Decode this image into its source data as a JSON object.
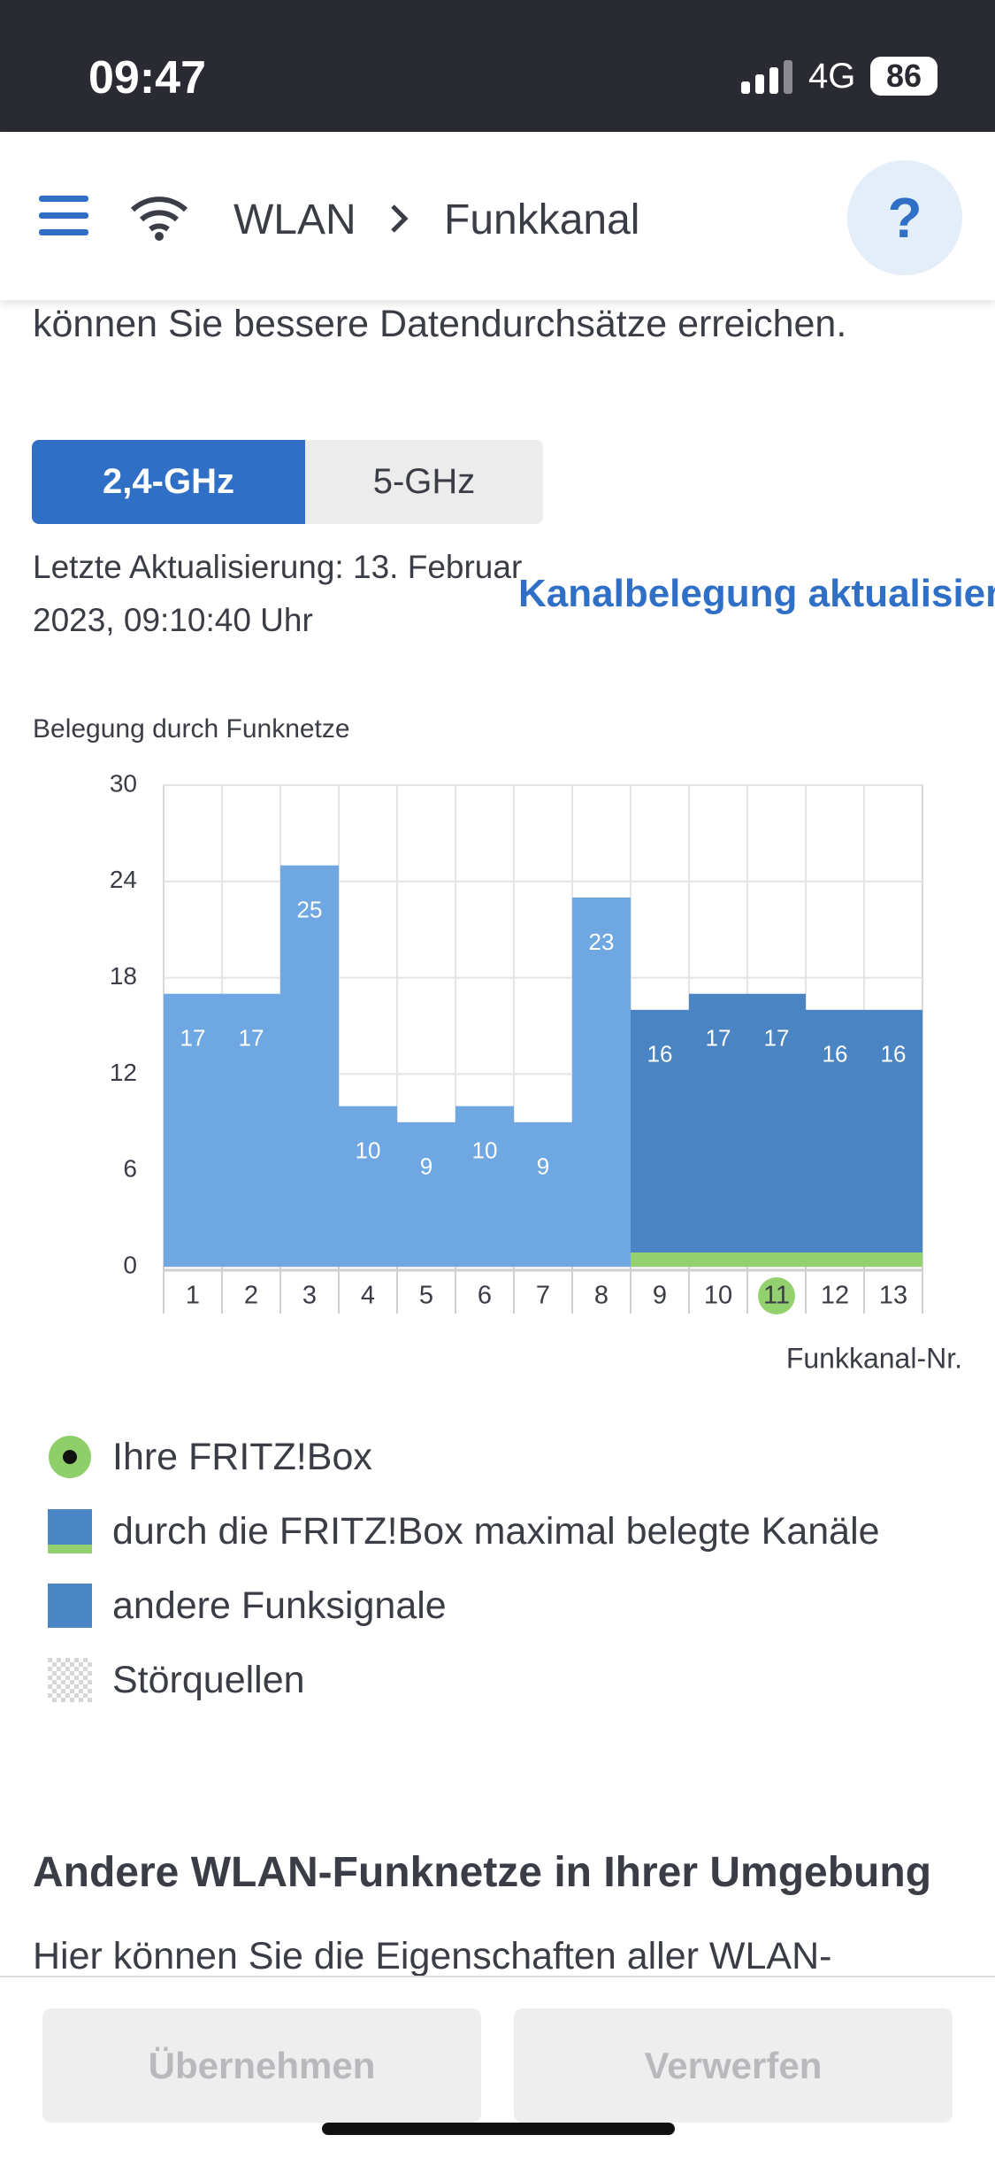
{
  "status_bar": {
    "time": "09:47",
    "network": "4G",
    "battery": "86"
  },
  "nav": {
    "section": "WLAN",
    "page": "Funkkanal",
    "help": "?"
  },
  "intro": "können Sie bessere Datendurchsätze erreichen.",
  "tabs": [
    "2,4-GHz",
    "5-GHz"
  ],
  "last_update": [
    "Letzte Aktualisierung: 13. Februar",
    "2023, 09:10:40 Uhr"
  ],
  "refresh_link": "Kanalbelegung aktualisieren",
  "chart_data": {
    "type": "bar",
    "title": "Belegung durch Funknetze",
    "x_label": "Funkkanal-Nr.",
    "categories": [
      "1",
      "2",
      "3",
      "4",
      "5",
      "6",
      "7",
      "8",
      "9",
      "10",
      "11",
      "12",
      "13"
    ],
    "values": [
      17,
      17,
      25,
      10,
      9,
      10,
      9,
      23,
      16,
      17,
      17,
      16,
      16
    ],
    "color": "#6ea7e1",
    "fritzbox_color": "#4b84c2",
    "strip_color": "#93d16f",
    "fritzbox_channel": "11",
    "fritzbox_max_channels": [
      "9",
      "10",
      "11",
      "12",
      "13"
    ],
    "ylim": [
      0,
      30
    ],
    "yticks": [
      0,
      6,
      12,
      18,
      24,
      30
    ],
    "grid": true,
    "legend": [
      {
        "name": "Ihre FRITZ!Box",
        "marker": "circle",
        "color": "#8fcf6a"
      },
      {
        "name": "durch die FRITZ!Box maximal belegte Kanäle",
        "marker": "bar-strip",
        "color": "#4a86c5"
      },
      {
        "name": "andere Funksignale",
        "marker": "square",
        "color": "#4a86c5"
      },
      {
        "name": "Störquellen",
        "marker": "pattern",
        "color": "#d6d6d6"
      }
    ]
  },
  "section": {
    "heading": "Andere WLAN-Funknetze in Ihrer Umgebung",
    "text": "Hier können Sie die Eigenschaften aller WLAN-"
  },
  "buttons": [
    "Übernehmen",
    "Verwerfen"
  ]
}
